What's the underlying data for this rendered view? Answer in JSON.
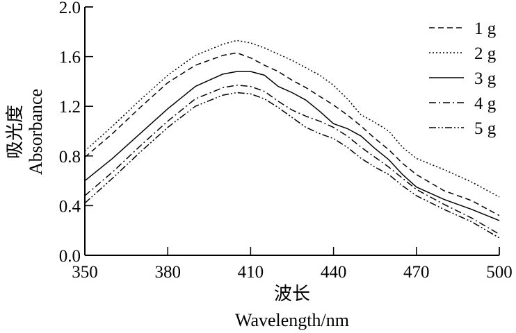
{
  "chart_data": {
    "type": "line",
    "title": "",
    "xlabel_cn": "波长",
    "xlabel": "Wavelength/nm",
    "ylabel_cn": "吸光度",
    "ylabel": "Absorbance",
    "xlim": [
      350,
      500
    ],
    "ylim": [
      0.0,
      2.0
    ],
    "xticks": [
      "350",
      "380",
      "410",
      "440",
      "470",
      "500"
    ],
    "yticks": [
      "0.0",
      "0.4",
      "0.8",
      "1.2",
      "1.6",
      "2.0"
    ],
    "grid": false,
    "legend_position": "top-right",
    "x": [
      350,
      360,
      370,
      380,
      390,
      400,
      405,
      410,
      415,
      420,
      425,
      430,
      435,
      440,
      445,
      450,
      455,
      460,
      465,
      470,
      480,
      490,
      500
    ],
    "series": [
      {
        "name": "1 g",
        "style": "dashed",
        "values": [
          0.79,
          0.98,
          1.19,
          1.39,
          1.53,
          1.61,
          1.63,
          1.59,
          1.53,
          1.48,
          1.41,
          1.35,
          1.28,
          1.21,
          1.13,
          1.04,
          0.94,
          0.85,
          0.74,
          0.65,
          0.52,
          0.44,
          0.32
        ]
      },
      {
        "name": "2 g",
        "style": "dotted",
        "values": [
          0.84,
          1.04,
          1.25,
          1.45,
          1.61,
          1.7,
          1.73,
          1.71,
          1.67,
          1.62,
          1.57,
          1.51,
          1.45,
          1.37,
          1.26,
          1.13,
          1.07,
          1.0,
          0.87,
          0.78,
          0.69,
          0.59,
          0.47
        ]
      },
      {
        "name": "3 g",
        "style": "solid",
        "values": [
          0.6,
          0.78,
          0.98,
          1.18,
          1.36,
          1.46,
          1.48,
          1.48,
          1.45,
          1.36,
          1.31,
          1.25,
          1.16,
          1.06,
          1.02,
          0.96,
          0.86,
          0.77,
          0.65,
          0.55,
          0.45,
          0.37,
          0.28
        ]
      },
      {
        "name": "4 g",
        "style": "dash-dot",
        "values": [
          0.48,
          0.67,
          0.88,
          1.08,
          1.26,
          1.35,
          1.37,
          1.36,
          1.32,
          1.24,
          1.17,
          1.12,
          1.08,
          1.03,
          0.96,
          0.87,
          0.79,
          0.71,
          0.62,
          0.53,
          0.41,
          0.3,
          0.17
        ]
      },
      {
        "name": "5 g",
        "style": "dash-dot-dot",
        "values": [
          0.42,
          0.62,
          0.83,
          1.03,
          1.2,
          1.29,
          1.31,
          1.3,
          1.26,
          1.19,
          1.11,
          1.03,
          0.98,
          0.94,
          0.87,
          0.78,
          0.71,
          0.65,
          0.56,
          0.48,
          0.37,
          0.27,
          0.14
        ]
      }
    ],
    "colors": {
      "line": "#000000",
      "axis": "#000000",
      "background": "#ffffff"
    }
  }
}
